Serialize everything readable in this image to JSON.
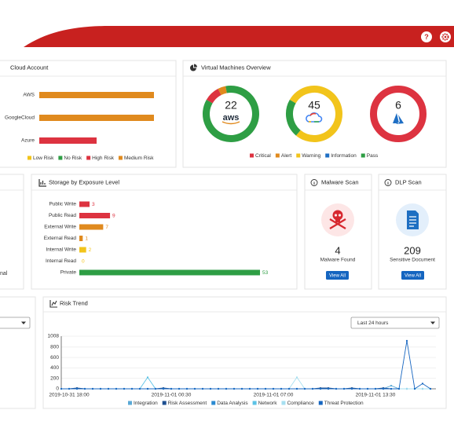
{
  "header": {
    "help": "?"
  },
  "chart_data": [
    {
      "type": "bar",
      "orientation": "horizontal",
      "stacked": true,
      "title": "Cloud Account",
      "categories": [
        "AWS",
        "GoogleCloud",
        "Azure"
      ],
      "series": [
        {
          "name": "Low Risk",
          "color": "#f2c41b",
          "values": [
            0,
            0,
            0
          ]
        },
        {
          "name": "No Risk",
          "color": "#2e9e44",
          "values": [
            0,
            0,
            0
          ]
        },
        {
          "name": "High Risk",
          "color": "#dd3340",
          "values": [
            0,
            0,
            10
          ]
        },
        {
          "name": "Medium Risk",
          "color": "#e08a1e",
          "values": [
            20,
            20,
            0
          ]
        }
      ],
      "xlim": [
        0,
        20
      ]
    },
    {
      "type": "donut",
      "title": "Virtual Machines Overview",
      "categories": [
        "Critical",
        "Alert",
        "Warning",
        "Information",
        "Pass"
      ],
      "colors": [
        "#dd3340",
        "#e08a1e",
        "#f2c41b",
        "#1f6fc4",
        "#2e9e44"
      ],
      "donuts": [
        {
          "total": 22,
          "label": "aws",
          "values": [
            2,
            1,
            0,
            0,
            19
          ]
        },
        {
          "total": 45,
          "values": [
            0,
            0,
            35,
            0,
            10
          ]
        },
        {
          "total": 6,
          "values": [
            6,
            0,
            0,
            0,
            0
          ]
        }
      ]
    },
    {
      "type": "bar",
      "orientation": "horizontal",
      "title": "Storage by Exposure Level",
      "categories": [
        "Public Write",
        "Public Read",
        "External Write",
        "External Read",
        "Internal Write",
        "Internal Read",
        "Private"
      ],
      "values": [
        3,
        9,
        7,
        1,
        2,
        0,
        53
      ],
      "colors": [
        "#dd3340",
        "#dd3340",
        "#e08a1e",
        "#e08a1e",
        "#f2c41b",
        "#f2c41b",
        "#2e9e44"
      ],
      "xlim": [
        0,
        53
      ]
    },
    {
      "type": "line",
      "title": "Risk Trend",
      "range": "Last 24 hours",
      "categories": [
        null,
        "2019-10-31 18:00",
        null,
        null,
        null,
        null,
        null,
        null,
        null,
        null,
        null,
        null,
        null,
        null,
        "2019-11-01 00:30",
        null,
        null,
        null,
        null,
        null,
        null,
        null,
        null,
        null,
        null,
        null,
        null,
        "2019-11-01 07:00",
        null,
        null,
        null,
        null,
        null,
        null,
        null,
        null,
        null,
        null,
        null,
        null,
        "2019-11-01 13:30",
        null,
        null,
        null,
        null,
        null,
        null,
        null
      ],
      "series": [
        {
          "name": "Integration",
          "color": "#5aa9d6",
          "values": [
            0,
            0,
            0,
            0,
            0,
            0,
            0,
            0,
            0,
            0,
            0,
            0,
            0,
            0,
            0,
            0,
            0,
            0,
            0,
            0,
            0,
            0,
            0,
            0,
            0,
            0,
            0,
            0,
            0,
            0,
            0,
            0,
            0,
            0,
            0,
            0,
            0,
            0,
            0,
            0,
            0,
            0,
            60,
            0,
            0,
            0,
            0,
            0
          ]
        },
        {
          "name": "Risk Assessment",
          "color": "#1d4f91",
          "values": [
            0,
            0,
            15,
            0,
            0,
            0,
            0,
            0,
            0,
            0,
            0,
            0,
            0,
            15,
            0,
            0,
            0,
            0,
            0,
            0,
            0,
            0,
            0,
            0,
            0,
            0,
            0,
            0,
            0,
            0,
            0,
            0,
            0,
            15,
            15,
            0,
            0,
            15,
            0,
            0,
            0,
            15,
            0,
            0,
            0,
            0,
            0,
            0
          ]
        },
        {
          "name": "Data Analysis",
          "color": "#2b8ad1",
          "values": [
            0,
            0,
            0,
            0,
            0,
            0,
            0,
            0,
            0,
            0,
            0,
            0,
            0,
            0,
            0,
            0,
            0,
            0,
            0,
            0,
            0,
            0,
            0,
            0,
            0,
            0,
            0,
            0,
            0,
            0,
            0,
            0,
            0,
            0,
            0,
            0,
            0,
            0,
            0,
            0,
            0,
            0,
            0,
            0,
            0,
            0,
            0,
            0
          ]
        },
        {
          "name": "Network",
          "color": "#5cc3e6",
          "values": [
            0,
            0,
            0,
            0,
            0,
            0,
            0,
            0,
            0,
            0,
            0,
            220,
            0,
            0,
            0,
            0,
            0,
            0,
            0,
            0,
            0,
            0,
            0,
            0,
            0,
            0,
            0,
            0,
            0,
            0,
            0,
            0,
            0,
            0,
            0,
            0,
            0,
            0,
            0,
            0,
            0,
            0,
            0,
            0,
            0,
            0,
            0,
            0
          ]
        },
        {
          "name": "Compliance",
          "color": "#a6dff0",
          "values": [
            0,
            0,
            0,
            0,
            0,
            0,
            0,
            0,
            0,
            0,
            0,
            0,
            0,
            0,
            0,
            0,
            0,
            0,
            0,
            0,
            0,
            0,
            0,
            0,
            0,
            0,
            0,
            0,
            0,
            0,
            220,
            0,
            0,
            0,
            0,
            0,
            0,
            0,
            0,
            0,
            0,
            0,
            0,
            0,
            0,
            0,
            0,
            0
          ]
        },
        {
          "name": "Threat Protection",
          "color": "#1565c0",
          "values": [
            0,
            0,
            0,
            0,
            0,
            0,
            0,
            0,
            0,
            0,
            0,
            0,
            0,
            0,
            0,
            0,
            0,
            0,
            0,
            0,
            0,
            0,
            0,
            0,
            0,
            0,
            0,
            0,
            0,
            0,
            0,
            0,
            0,
            0,
            0,
            0,
            0,
            0,
            0,
            0,
            0,
            0,
            0,
            0,
            920,
            0,
            100,
            0
          ]
        }
      ],
      "ylim": [
        0,
        1008
      ],
      "yticks": [
        0,
        200,
        400,
        600,
        800,
        1008
      ],
      "grid": true
    }
  ],
  "cards": [
    {
      "title": "Malware Scan",
      "count": 4,
      "caption": "Malware Found",
      "button": "View All"
    },
    {
      "title": "DLP Scan",
      "count": 209,
      "caption": "Sensitive Document",
      "button": "View All"
    }
  ],
  "fragments": {
    "cut_label": "nal"
  }
}
